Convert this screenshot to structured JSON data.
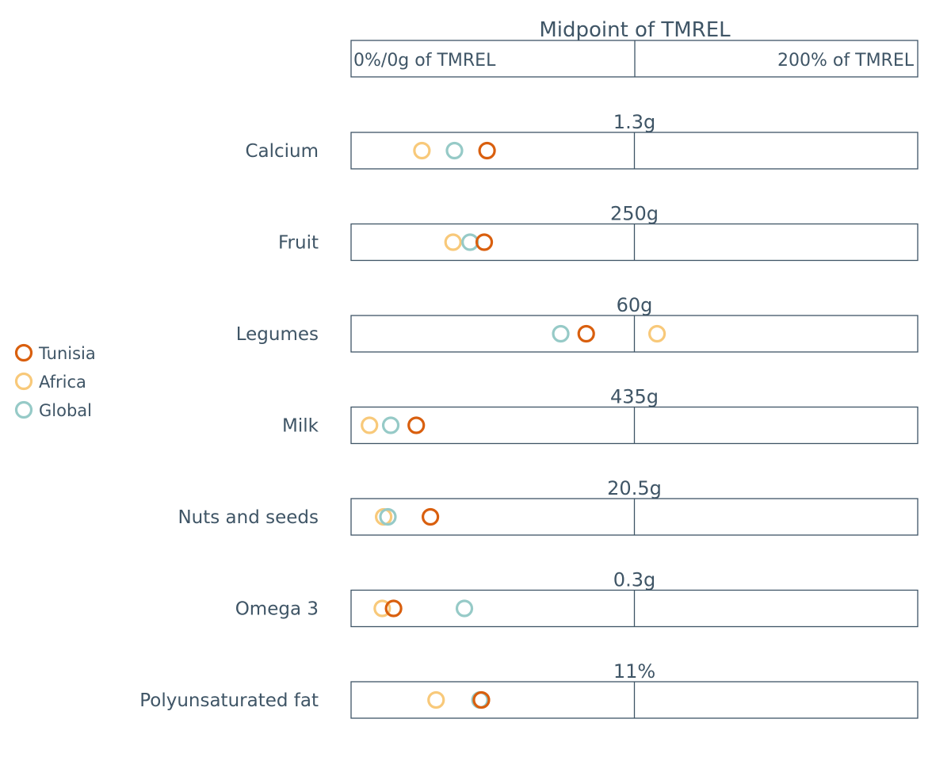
{
  "header": {
    "title": "Midpoint of TMREL",
    "left_label": "0%/0g of TMREL",
    "right_label": "200% of TMREL"
  },
  "legend": [
    {
      "name": "Tunisia",
      "color": "#d95f0e"
    },
    {
      "name": "Africa",
      "color": "#f8c97a"
    },
    {
      "name": "Global",
      "color": "#96cac7"
    }
  ],
  "chart_data": {
    "type": "scatter",
    "xlim": [
      0,
      200
    ],
    "x_unit": "% of TMREL",
    "series_order": [
      "Africa",
      "Global",
      "Tunisia"
    ],
    "rows": [
      {
        "label": "Calcium",
        "midpoint": "1.3g",
        "values": {
          "Tunisia": 48,
          "Africa": 25,
          "Global": 36.5
        }
      },
      {
        "label": "Fruit",
        "midpoint": "250g",
        "values": {
          "Tunisia": 47,
          "Africa": 36,
          "Global": 42
        }
      },
      {
        "label": "Legumes",
        "midpoint": "60g",
        "values": {
          "Tunisia": 83,
          "Africa": 108,
          "Global": 74
        }
      },
      {
        "label": "Milk",
        "midpoint": "435g",
        "values": {
          "Tunisia": 23,
          "Africa": 6.5,
          "Global": 14
        }
      },
      {
        "label": "Nuts and seeds",
        "midpoint": "20.5g",
        "values": {
          "Tunisia": 28,
          "Africa": 11.5,
          "Global": 13
        }
      },
      {
        "label": "Omega 3",
        "midpoint": "0.3g",
        "values": {
          "Tunisia": 15,
          "Africa": 11,
          "Global": 40
        }
      },
      {
        "label": "Polyunsaturated fat",
        "midpoint": "11%",
        "values": {
          "Tunisia": 46,
          "Africa": 30,
          "Global": 45.5
        }
      }
    ]
  }
}
